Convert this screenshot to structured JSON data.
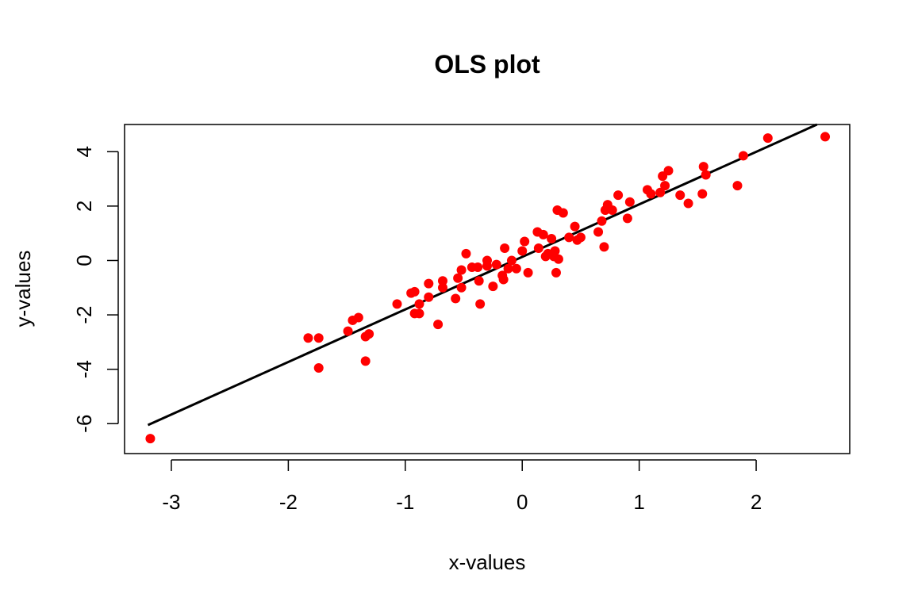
{
  "chart_data": {
    "type": "scatter",
    "title": "OLS plot",
    "xlabel": "x-values",
    "ylabel": "y-values",
    "xlim": [
      -3.4,
      2.8
    ],
    "ylim": [
      -7.1,
      5.0
    ],
    "x_ticks": [
      -3,
      -2,
      -1,
      0,
      1,
      2
    ],
    "y_ticks": [
      -6,
      -4,
      -2,
      0,
      2,
      4
    ],
    "x_tick_labels": [
      "-3",
      "-2",
      "-1",
      "0",
      "1",
      "2"
    ],
    "y_tick_labels": [
      "-6",
      "-4",
      "-2",
      "0",
      "2",
      "4"
    ],
    "point_color": "#ff0000",
    "line_color": "#000000",
    "grid": false,
    "fit_line": {
      "x": [
        -3.2,
        2.52
      ],
      "y": [
        -6.05,
        5.0
      ]
    },
    "points": [
      [
        -3.18,
        -6.55
      ],
      [
        -1.83,
        -2.85
      ],
      [
        -1.74,
        -2.85
      ],
      [
        -1.74,
        -3.95
      ],
      [
        -1.49,
        -2.6
      ],
      [
        -1.45,
        -2.2
      ],
      [
        -1.4,
        -2.1
      ],
      [
        -1.34,
        -2.8
      ],
      [
        -1.31,
        -2.7
      ],
      [
        -1.34,
        -3.7
      ],
      [
        -1.07,
        -1.6
      ],
      [
        -0.95,
        -1.2
      ],
      [
        -0.92,
        -1.15
      ],
      [
        -0.92,
        -1.95
      ],
      [
        -0.88,
        -1.95
      ],
      [
        -0.88,
        -1.6
      ],
      [
        -0.8,
        -1.35
      ],
      [
        -0.8,
        -0.85
      ],
      [
        -0.72,
        -2.35
      ],
      [
        -0.68,
        -0.75
      ],
      [
        -0.68,
        -1.0
      ],
      [
        -0.57,
        -1.4
      ],
      [
        -0.55,
        -0.65
      ],
      [
        -0.52,
        -0.35
      ],
      [
        -0.52,
        -1.0
      ],
      [
        -0.48,
        0.25
      ],
      [
        -0.43,
        -0.25
      ],
      [
        -0.38,
        -0.25
      ],
      [
        -0.37,
        -0.75
      ],
      [
        -0.36,
        -1.6
      ],
      [
        -0.3,
        0.0
      ],
      [
        -0.3,
        -0.2
      ],
      [
        -0.25,
        -0.95
      ],
      [
        -0.22,
        -0.15
      ],
      [
        -0.17,
        -0.55
      ],
      [
        -0.16,
        -0.7
      ],
      [
        -0.15,
        0.45
      ],
      [
        -0.12,
        -0.3
      ],
      [
        -0.09,
        0.0
      ],
      [
        -0.05,
        -0.3
      ],
      [
        0.0,
        0.35
      ],
      [
        0.02,
        0.7
      ],
      [
        0.05,
        -0.45
      ],
      [
        0.13,
        1.05
      ],
      [
        0.14,
        0.45
      ],
      [
        0.18,
        0.95
      ],
      [
        0.2,
        0.15
      ],
      [
        0.22,
        0.25
      ],
      [
        0.25,
        0.8
      ],
      [
        0.27,
        0.15
      ],
      [
        0.28,
        0.35
      ],
      [
        0.29,
        -0.45
      ],
      [
        0.3,
        1.85
      ],
      [
        0.31,
        0.05
      ],
      [
        0.35,
        1.75
      ],
      [
        0.4,
        0.85
      ],
      [
        0.45,
        1.25
      ],
      [
        0.47,
        0.75
      ],
      [
        0.5,
        0.85
      ],
      [
        0.65,
        1.05
      ],
      [
        0.68,
        1.45
      ],
      [
        0.7,
        0.5
      ],
      [
        0.71,
        1.85
      ],
      [
        0.73,
        2.05
      ],
      [
        0.77,
        1.85
      ],
      [
        0.82,
        2.4
      ],
      [
        0.9,
        1.55
      ],
      [
        0.92,
        2.15
      ],
      [
        1.07,
        2.6
      ],
      [
        1.1,
        2.45
      ],
      [
        1.18,
        2.5
      ],
      [
        1.2,
        3.1
      ],
      [
        1.22,
        2.75
      ],
      [
        1.25,
        3.3
      ],
      [
        1.35,
        2.4
      ],
      [
        1.42,
        2.1
      ],
      [
        1.54,
        2.45
      ],
      [
        1.55,
        3.45
      ],
      [
        1.57,
        3.15
      ],
      [
        1.84,
        2.75
      ],
      [
        1.89,
        3.85
      ],
      [
        2.1,
        4.5
      ],
      [
        2.59,
        4.55
      ]
    ]
  }
}
